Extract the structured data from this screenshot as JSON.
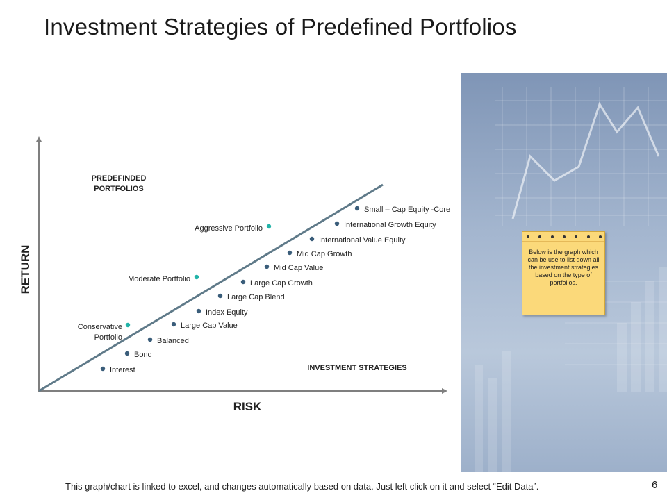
{
  "title": "Investment Strategies of Predefined Portfolios",
  "axes": {
    "y_label": "RETURN",
    "x_label": "RISK"
  },
  "heading_portfolios": [
    "PREDEFINDED",
    "PORTFOLIOS"
  ],
  "heading_strategies": "INVESTMENT STRATEGIES",
  "colors": {
    "axis": "#7f7f7f",
    "diagonal": "#5f7a89",
    "strategy_dot": "#3a5d7a",
    "portfolio_dot": "#22b3a8",
    "note_bg": "#fbd97a"
  },
  "strategies": [
    {
      "label": "Interest"
    },
    {
      "label": "Bond"
    },
    {
      "label": "Balanced"
    },
    {
      "label": "Large Cap Value"
    },
    {
      "label": "Index Equity"
    },
    {
      "label": "Large Cap Blend"
    },
    {
      "label": "Large Cap Growth"
    },
    {
      "label": "Mid Cap Value"
    },
    {
      "label": "Mid Cap Growth"
    },
    {
      "label": "International Value Equity"
    },
    {
      "label": "International Growth Equity"
    },
    {
      "label": "Small – Cap Equity -Core"
    }
  ],
  "portfolios": [
    {
      "lines": [
        "Conservative",
        "Portfolio"
      ]
    },
    {
      "lines": [
        "Moderate Portfolio"
      ]
    },
    {
      "lines": [
        "Aggressive Portfolio"
      ]
    }
  ],
  "note": {
    "text": "Below is the graph which can be use to list down all the investment strategies based on the type of portfolios."
  },
  "footer": "This graph/chart is linked to excel, and changes automatically based on data. Just left click on it and select “Edit Data”.",
  "page_number": "6"
}
